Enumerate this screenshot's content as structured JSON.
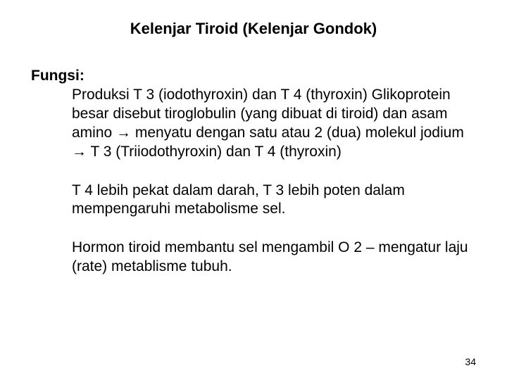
{
  "title": "Kelenjar Tiroid  (Kelenjar Gondok)",
  "section_label": "Fungsi:",
  "para1_a": "Produksi T 3 (iodothyroxin)  dan T 4 (thyroxin) Glikoprotein besar disebut  tiroglobulin (yang dibuat di tiroid) dan asam amino ",
  "arrow1": "→",
  "para1_b": " menyatu dengan satu atau 2 (dua) molekul jodium ",
  "arrow2": "→",
  "para1_c": " T 3 (Triiodothyroxin) dan T 4 (thyroxin)",
  "para2": "T 4 lebih pekat dalam darah, T 3 lebih poten dalam mempengaruhi metabolisme sel.",
  "para3": "Hormon tiroid membantu sel mengambil O 2 – mengatur laju (rate) metablisme tubuh.",
  "page_number": "34"
}
